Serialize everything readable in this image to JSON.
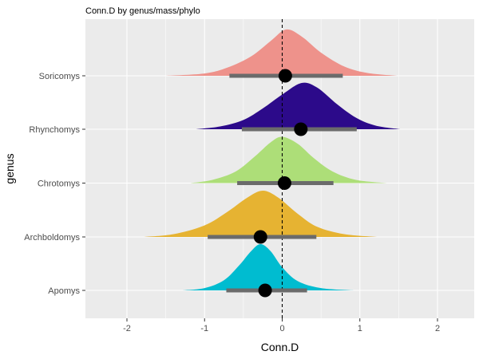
{
  "chart_data": {
    "type": "area",
    "subtype": "halfeye-density",
    "title": "Conn.D by genus/mass/phylo",
    "xlabel": "Conn.D",
    "ylabel": "genus",
    "xlim": [
      -2.5,
      2.5
    ],
    "xticks": [
      -2,
      -1,
      0,
      1,
      2
    ],
    "vline": 0,
    "grid": true,
    "background": "#EBEBEB",
    "categories": [
      "Soricomys",
      "Rhynchomys",
      "Chrotomys",
      "Archboldomys",
      "Apomys"
    ],
    "series": [
      {
        "name": "Soricomys",
        "color": "#EE928B",
        "mode": 0.05,
        "point": 0.04,
        "interval": [
          -0.68,
          0.78
        ],
        "range": [
          -1.5,
          1.48
        ],
        "density": [
          [
            -1.5,
            0.0
          ],
          [
            -1.0,
            0.05
          ],
          [
            -0.7,
            0.18
          ],
          [
            -0.4,
            0.42
          ],
          [
            -0.15,
            0.75
          ],
          [
            0.05,
            1.0
          ],
          [
            0.25,
            0.85
          ],
          [
            0.5,
            0.5
          ],
          [
            0.8,
            0.2
          ],
          [
            1.1,
            0.06
          ],
          [
            1.48,
            0.0
          ]
        ]
      },
      {
        "name": "Rhynchomys",
        "color": "#2C0A8A",
        "mode": 0.25,
        "point": 0.24,
        "interval": [
          -0.52,
          0.96
        ],
        "range": [
          -1.12,
          1.52
        ],
        "density": [
          [
            -1.12,
            0.0
          ],
          [
            -0.8,
            0.06
          ],
          [
            -0.5,
            0.2
          ],
          [
            -0.25,
            0.45
          ],
          [
            0.0,
            0.75
          ],
          [
            0.25,
            1.0
          ],
          [
            0.45,
            0.9
          ],
          [
            0.7,
            0.55
          ],
          [
            0.95,
            0.25
          ],
          [
            1.2,
            0.08
          ],
          [
            1.52,
            0.0
          ]
        ]
      },
      {
        "name": "Chrotomys",
        "color": "#ADDE78",
        "mode": 0.0,
        "point": 0.03,
        "interval": [
          -0.58,
          0.66
        ],
        "range": [
          -1.18,
          1.35
        ],
        "density": [
          [
            -1.18,
            0.0
          ],
          [
            -0.9,
            0.07
          ],
          [
            -0.6,
            0.25
          ],
          [
            -0.35,
            0.58
          ],
          [
            -0.15,
            0.88
          ],
          [
            0.0,
            1.0
          ],
          [
            0.2,
            0.85
          ],
          [
            0.4,
            0.55
          ],
          [
            0.65,
            0.25
          ],
          [
            0.95,
            0.07
          ],
          [
            1.35,
            0.0
          ]
        ]
      },
      {
        "name": "Archboldomys",
        "color": "#E6B332",
        "mode": -0.25,
        "point": -0.28,
        "interval": [
          -0.96,
          0.44
        ],
        "range": [
          -1.78,
          1.22
        ],
        "density": [
          [
            -1.78,
            0.0
          ],
          [
            -1.4,
            0.06
          ],
          [
            -1.0,
            0.25
          ],
          [
            -0.7,
            0.55
          ],
          [
            -0.45,
            0.85
          ],
          [
            -0.25,
            1.0
          ],
          [
            -0.05,
            0.85
          ],
          [
            0.2,
            0.5
          ],
          [
            0.45,
            0.22
          ],
          [
            0.8,
            0.06
          ],
          [
            1.22,
            0.0
          ]
        ]
      },
      {
        "name": "Apomys",
        "color": "#00BCD0",
        "mode": -0.28,
        "point": -0.22,
        "interval": [
          -0.72,
          0.32
        ],
        "range": [
          -1.28,
          0.92
        ],
        "density": [
          [
            -1.28,
            0.0
          ],
          [
            -1.0,
            0.05
          ],
          [
            -0.75,
            0.22
          ],
          [
            -0.55,
            0.55
          ],
          [
            -0.4,
            0.85
          ],
          [
            -0.28,
            1.0
          ],
          [
            -0.15,
            0.85
          ],
          [
            0.0,
            0.5
          ],
          [
            0.2,
            0.2
          ],
          [
            0.5,
            0.05
          ],
          [
            0.92,
            0.0
          ]
        ]
      }
    ]
  }
}
